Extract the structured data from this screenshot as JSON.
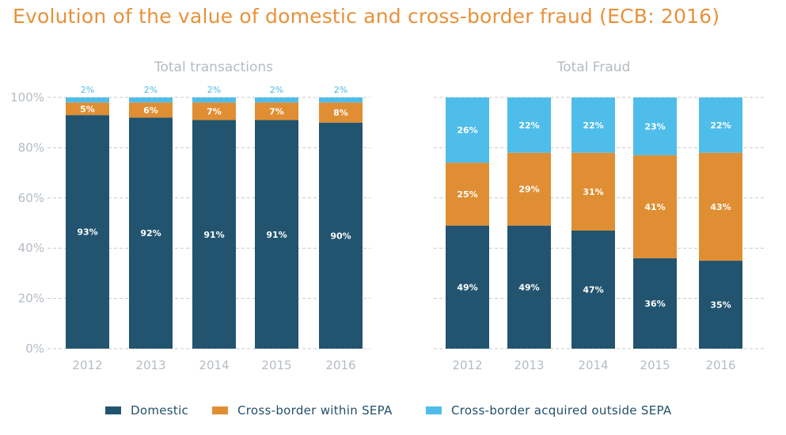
{
  "title": "Evolution of the value of domestic and cross-border fraud (ECB: 2016)",
  "colors": {
    "domestic": "#22546f",
    "within_sepa": "#e08e33",
    "outside_sepa": "#4fbde9",
    "grid": "#c8c8c8",
    "axis_text": "#b4bcc3"
  },
  "legend": [
    {
      "label": "Domestic",
      "color_key": "domestic"
    },
    {
      "label": "Cross-border within SEPA",
      "color_key": "within_sepa"
    },
    {
      "label": "Cross-border acquired outside SEPA",
      "color_key": "outside_sepa"
    }
  ],
  "chart_data": [
    {
      "type": "bar",
      "stacked": true,
      "title": "Total transactions",
      "categories": [
        "2012",
        "2013",
        "2014",
        "2015",
        "2016"
      ],
      "ylim": [
        0,
        100
      ],
      "yticks": [
        "0%",
        "20%",
        "40%",
        "60%",
        "80%",
        "100%"
      ],
      "grid": true,
      "series": [
        {
          "name": "Domestic",
          "values": [
            93,
            92,
            91,
            91,
            90
          ],
          "labels": [
            "93%",
            "92%",
            "91%",
            "91%",
            "90%"
          ]
        },
        {
          "name": "Cross-border within SEPA",
          "values": [
            5,
            6,
            7,
            7,
            8
          ],
          "labels": [
            "5%",
            "6%",
            "7%",
            "7%",
            "8%"
          ]
        },
        {
          "name": "Cross-border acquired outside SEPA",
          "values": [
            2,
            2,
            2,
            2,
            2
          ],
          "labels": [
            "2%",
            "2%",
            "2%",
            "2%",
            "2%"
          ]
        }
      ]
    },
    {
      "type": "bar",
      "stacked": true,
      "title": "Total Fraud",
      "categories": [
        "2012",
        "2013",
        "2014",
        "2015",
        "2016"
      ],
      "ylim": [
        0,
        100
      ],
      "grid": true,
      "series": [
        {
          "name": "Domestic",
          "values": [
            49,
            49,
            47,
            36,
            35
          ],
          "labels": [
            "49%",
            "49%",
            "47%",
            "36%",
            "35%"
          ]
        },
        {
          "name": "Cross-border within SEPA",
          "values": [
            25,
            29,
            31,
            41,
            43
          ],
          "labels": [
            "25%",
            "29%",
            "31%",
            "41%",
            "43%"
          ]
        },
        {
          "name": "Cross-border acquired outside SEPA",
          "values": [
            26,
            22,
            22,
            23,
            22
          ],
          "labels": [
            "26%",
            "22%",
            "22%",
            "23%",
            "22%"
          ]
        }
      ]
    }
  ]
}
